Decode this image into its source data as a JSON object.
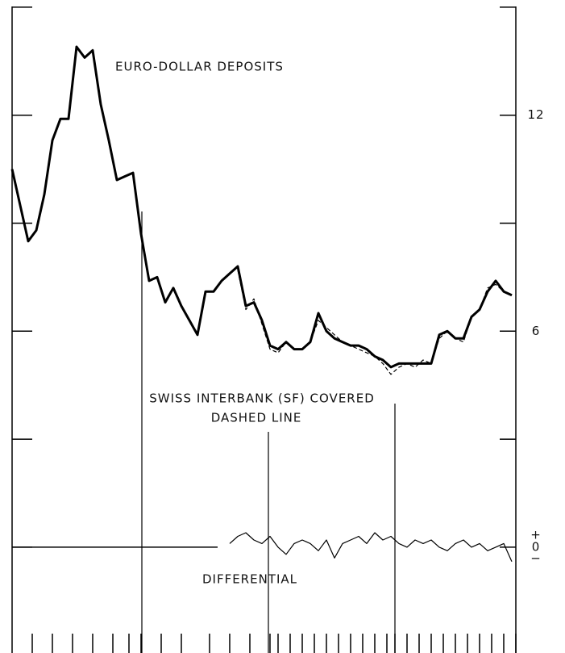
{
  "chart_data": {
    "type": "line",
    "x": [
      0,
      2,
      4,
      6,
      8,
      10,
      12,
      14,
      16,
      18,
      20,
      22,
      24,
      26,
      28,
      30,
      32,
      34,
      36,
      38,
      40,
      42,
      44,
      46,
      48,
      50,
      52,
      54,
      56,
      58,
      60,
      62,
      64,
      66,
      68,
      70,
      72,
      74,
      76,
      78,
      80,
      82,
      84,
      86,
      88,
      90,
      92,
      94,
      96,
      98,
      100,
      102,
      104,
      106,
      108,
      110,
      112,
      114,
      116,
      118,
      120,
      122,
      124
    ],
    "series": [
      {
        "name": "EURO-DOLLAR DEPOSITS",
        "color": "#000000",
        "line_style": "solid",
        "line_width": 3,
        "values": [
          10.5,
          9.5,
          8.5,
          8.8,
          9.8,
          11.3,
          11.9,
          11.9,
          13.9,
          13.6,
          13.8,
          12.3,
          11.3,
          10.2,
          10.3,
          10.4,
          8.7,
          7.4,
          7.5,
          6.8,
          7.2,
          6.7,
          6.3,
          5.9,
          7.1,
          7.1,
          7.4,
          7.6,
          7.8,
          6.7,
          6.8,
          6.3,
          5.6,
          5.5,
          5.7,
          5.5,
          5.5,
          5.7,
          6.5,
          6.0,
          5.8,
          5.7,
          5.6,
          5.6,
          5.5,
          5.3,
          5.2,
          5.0,
          5.1,
          5.1,
          5.1,
          5.1,
          5.1,
          5.9,
          6.0,
          5.8,
          5.8,
          6.4,
          6.6,
          7.1,
          7.4,
          7.1,
          7.0
        ]
      },
      {
        "name": "SWISS INTERBANK (SF) COVERED",
        "color": "#000000",
        "line_style": "dashed",
        "line_width": 1.2,
        "values": [
          null,
          null,
          null,
          null,
          null,
          null,
          null,
          null,
          null,
          null,
          null,
          null,
          null,
          null,
          null,
          null,
          null,
          null,
          null,
          null,
          null,
          null,
          null,
          null,
          null,
          null,
          null,
          null,
          7.7,
          6.6,
          6.9,
          6.2,
          5.5,
          5.4,
          5.7,
          5.5,
          5.5,
          5.7,
          6.3,
          6.1,
          5.9,
          5.7,
          5.6,
          5.5,
          5.4,
          5.3,
          5.1,
          4.8,
          5.0,
          5.1,
          5.0,
          5.2,
          5.1,
          5.8,
          6.0,
          5.8,
          5.7,
          6.4,
          6.6,
          7.2,
          7.3,
          7.1,
          7.0
        ]
      },
      {
        "name": "DIFFERENTIAL",
        "color": "#000000",
        "line_style": "solid",
        "line_width": 1.2,
        "values": [
          null,
          null,
          null,
          null,
          null,
          null,
          null,
          null,
          null,
          null,
          null,
          null,
          null,
          null,
          null,
          null,
          null,
          null,
          null,
          null,
          null,
          null,
          null,
          null,
          null,
          null,
          null,
          0.1,
          0.3,
          0.4,
          0.2,
          0.1,
          0.3,
          0.0,
          -0.2,
          0.1,
          0.2,
          0.1,
          -0.1,
          0.2,
          -0.3,
          0.1,
          0.2,
          0.3,
          0.1,
          0.4,
          0.2,
          0.3,
          0.1,
          0.0,
          0.2,
          0.1,
          0.2,
          0.0,
          -0.1,
          0.1,
          0.2,
          0.0,
          0.1,
          -0.1,
          0.0,
          0.1,
          -0.4
        ]
      }
    ],
    "annotation": "DASHED LINE",
    "zero_signs": [
      "+",
      "−"
    ],
    "xlim": [
      0,
      125
    ],
    "ylim": [
      -2.94,
      15.2
    ],
    "yticks": [
      0,
      6,
      12
    ],
    "minor_yticks": [
      3,
      9,
      15
    ],
    "xticks": [
      5,
      10,
      15,
      20,
      25,
      29,
      32,
      37,
      42,
      49,
      54,
      59,
      64,
      66,
      69,
      72,
      75,
      78,
      81,
      84,
      87,
      90,
      93,
      95,
      98,
      101,
      104,
      107,
      110,
      113,
      116,
      119,
      122,
      125
    ],
    "vlines": [
      32.2,
      63.6,
      95
    ]
  }
}
